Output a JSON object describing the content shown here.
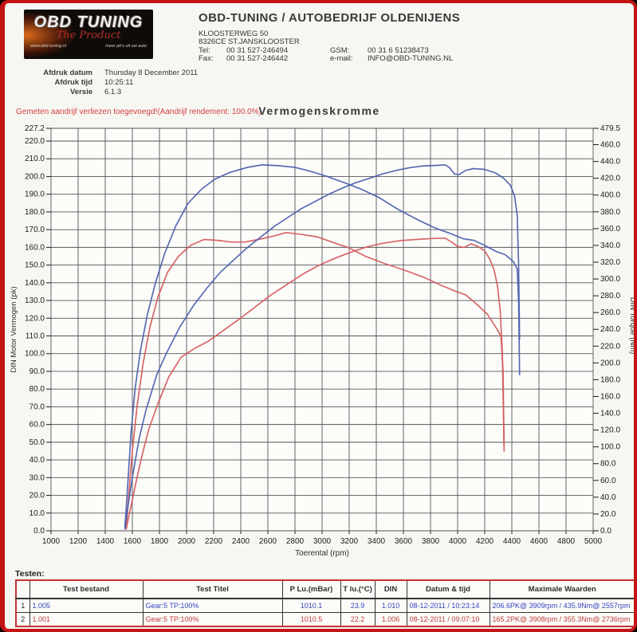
{
  "header": {
    "logo": {
      "line1": "OBD TUNING",
      "line2": "The Product",
      "line3": "www.obd-tuning.nl",
      "line4": "meer pk's uit uw auto"
    },
    "company_title": "OBD-TUNING / AUTOBEDRIJF OLDENIJENS",
    "address_line1": "KLOOSTERWEG 50",
    "address_line2": "8326CE ST.JANSKLOOSTER",
    "contacts": [
      {
        "label": "Tel:",
        "value": "00 31 527-246494",
        "label2": "GSM:",
        "value2": "00 31 6 51238473"
      },
      {
        "label": "Fax:",
        "value": "00 31 527-246442",
        "label2": "e-mail:",
        "value2": "INFO@OBD-TUNING.NL"
      }
    ]
  },
  "print_info": {
    "rows": [
      {
        "label": "Afdruk datum",
        "value": "Thursday 8 December 2011"
      },
      {
        "label": "Afdruk tijd",
        "value": "10:25:11"
      },
      {
        "label": "Versie",
        "value": "6.1.3"
      }
    ]
  },
  "chart": {
    "note": "Gemeten aandrijf verliezen toegevoegd!(Aandrijf rendement: 100.0%)",
    "title": "Vermogenskromme"
  },
  "chart_data": {
    "type": "line",
    "title": "Vermogenskromme",
    "xlabel": "Toerental (rpm)",
    "ylabel_left": "DIN Motor Vermogen (pk)",
    "ylabel_right": "DIN Torque (Nm)",
    "x_range": [
      1000,
      5000
    ],
    "x_tick_step": 200,
    "y_left_range": [
      0,
      227.2
    ],
    "y_left_tick_step": 10,
    "y_left_top_label": 227.2,
    "y_right_range": [
      0,
      479.5
    ],
    "y_right_tick_step": 20,
    "y_right_top_label": 479.5,
    "grid": true,
    "legend": "none",
    "colors": {
      "run1": "#4b5fae",
      "run2": "#d4595c"
    },
    "series": [
      {
        "name": "torque-run1",
        "axis": "right",
        "unit": "Nm",
        "color": "#4b5fae",
        "points": [
          [
            1545,
            4
          ],
          [
            1565,
            53
          ],
          [
            1590,
            116
          ],
          [
            1620,
            169
          ],
          [
            1660,
            215
          ],
          [
            1710,
            257
          ],
          [
            1770,
            295
          ],
          [
            1840,
            331
          ],
          [
            1920,
            363
          ],
          [
            2010,
            390
          ],
          [
            2110,
            407
          ],
          [
            2210,
            419
          ],
          [
            2320,
            427
          ],
          [
            2450,
            433
          ],
          [
            2557,
            435.9
          ],
          [
            2680,
            435
          ],
          [
            2800,
            433
          ],
          [
            2920,
            428
          ],
          [
            3040,
            422
          ],
          [
            3160,
            415
          ],
          [
            3290,
            407
          ],
          [
            3420,
            397
          ],
          [
            3560,
            383
          ],
          [
            3700,
            371
          ],
          [
            3830,
            361
          ],
          [
            3950,
            354
          ],
          [
            4040,
            348
          ],
          [
            4120,
            346
          ],
          [
            4200,
            340
          ],
          [
            4280,
            333
          ],
          [
            4350,
            329
          ],
          [
            4410,
            321
          ],
          [
            4440,
            312
          ],
          [
            4450,
            274
          ],
          [
            4455,
            211
          ],
          [
            4457,
            186
          ]
        ]
      },
      {
        "name": "torque-run2",
        "axis": "right",
        "unit": "Nm",
        "color": "#d4595c",
        "points": [
          [
            1555,
            4
          ],
          [
            1575,
            46
          ],
          [
            1600,
            95
          ],
          [
            1635,
            148
          ],
          [
            1680,
            200
          ],
          [
            1730,
            243
          ],
          [
            1790,
            279
          ],
          [
            1860,
            308
          ],
          [
            1940,
            327
          ],
          [
            2030,
            340
          ],
          [
            2130,
            347
          ],
          [
            2230,
            346
          ],
          [
            2330,
            344
          ],
          [
            2430,
            344
          ],
          [
            2530,
            347
          ],
          [
            2640,
            351
          ],
          [
            2736,
            355.3
          ],
          [
            2850,
            353
          ],
          [
            2970,
            350
          ],
          [
            3090,
            343
          ],
          [
            3200,
            337
          ],
          [
            3320,
            327
          ],
          [
            3450,
            319
          ],
          [
            3600,
            311
          ],
          [
            3750,
            302
          ],
          [
            3870,
            293
          ],
          [
            3990,
            285
          ],
          [
            4060,
            281
          ],
          [
            4140,
            270
          ],
          [
            4220,
            258
          ],
          [
            4280,
            243
          ],
          [
            4320,
            232
          ],
          [
            4335,
            190
          ],
          [
            4343,
            95
          ]
        ]
      },
      {
        "name": "power-run1",
        "axis": "left",
        "unit": "pk",
        "color": "#4b5fae",
        "points": [
          [
            1545,
            1
          ],
          [
            1570,
            15
          ],
          [
            1600,
            30
          ],
          [
            1650,
            52
          ],
          [
            1700,
            68
          ],
          [
            1780,
            88
          ],
          [
            1850,
            100
          ],
          [
            1950,
            115
          ],
          [
            2050,
            127
          ],
          [
            2150,
            137
          ],
          [
            2250,
            146
          ],
          [
            2350,
            153
          ],
          [
            2450,
            160
          ],
          [
            2550,
            166
          ],
          [
            2650,
            172
          ],
          [
            2750,
            177
          ],
          [
            2850,
            182
          ],
          [
            2950,
            186
          ],
          [
            3050,
            190
          ],
          [
            3150,
            193.5
          ],
          [
            3250,
            196.5
          ],
          [
            3350,
            199
          ],
          [
            3450,
            201.5
          ],
          [
            3550,
            203.5
          ],
          [
            3650,
            205
          ],
          [
            3750,
            206
          ],
          [
            3850,
            206.3
          ],
          [
            3909,
            206.6
          ],
          [
            3940,
            205
          ],
          [
            3975,
            201.5
          ],
          [
            4010,
            201
          ],
          [
            4060,
            203.5
          ],
          [
            4120,
            204.5
          ],
          [
            4200,
            204
          ],
          [
            4280,
            202
          ],
          [
            4340,
            199
          ],
          [
            4390,
            195
          ],
          [
            4420,
            189
          ],
          [
            4440,
            178
          ],
          [
            4450,
            150
          ],
          [
            4457,
            108
          ]
        ]
      },
      {
        "name": "power-run2",
        "axis": "left",
        "unit": "pk",
        "color": "#d4595c",
        "points": [
          [
            1555,
            1
          ],
          [
            1585,
            12
          ],
          [
            1620,
            25
          ],
          [
            1670,
            42
          ],
          [
            1720,
            57
          ],
          [
            1790,
            72
          ],
          [
            1870,
            87
          ],
          [
            1960,
            98
          ],
          [
            2060,
            103
          ],
          [
            2160,
            107
          ],
          [
            2270,
            113
          ],
          [
            2380,
            119
          ],
          [
            2500,
            126
          ],
          [
            2620,
            133
          ],
          [
            2740,
            139
          ],
          [
            2860,
            145
          ],
          [
            2980,
            150
          ],
          [
            3100,
            154
          ],
          [
            3220,
            157.5
          ],
          [
            3340,
            160.5
          ],
          [
            3460,
            162.5
          ],
          [
            3580,
            163.8
          ],
          [
            3700,
            164.5
          ],
          [
            3810,
            165
          ],
          [
            3908,
            165.2
          ],
          [
            3955,
            163
          ],
          [
            4000,
            160.5
          ],
          [
            4050,
            160
          ],
          [
            4100,
            162
          ],
          [
            4150,
            160.5
          ],
          [
            4200,
            158
          ],
          [
            4240,
            153
          ],
          [
            4270,
            147
          ],
          [
            4295,
            138
          ],
          [
            4315,
            124
          ],
          [
            4330,
            100
          ],
          [
            4343,
            48
          ]
        ]
      }
    ],
    "max_values": {
      "run1": "206.6PK@ 3909rpm / 435.9Nm@ 2557rpm",
      "run2": "165.2PK@ 3908rpm / 355.3Nm@ 2736rpm"
    }
  },
  "table": {
    "section_label": "Testen:",
    "headers": [
      "",
      "Test bestand",
      "Test Titel",
      "P Lu.(mBar)",
      "T lu.(°C)",
      "DIN",
      "Datum & tijd",
      "Maximale Waarden"
    ],
    "rows": [
      {
        "num": "1",
        "test_bestand": "1.005",
        "test_titel": "Gear:5 TP:100%",
        "p_lu": "1010.1",
        "t_lu": "23.9",
        "din": "1.010",
        "datum": "08-12-2011 / 10:23:14",
        "max": "206.6PK@ 3909rpm / 435.9Nm@ 2557rpm",
        "color": "#3546c0"
      },
      {
        "num": "2",
        "test_bestand": "1.001",
        "test_titel": "Gear:5 TP:100%",
        "p_lu": "1010.5",
        "t_lu": "22.2",
        "din": "1.006",
        "datum": "08-12-2011 / 09:07:10",
        "max": "165.2PK@ 3908rpm / 355.3Nm@ 2736rpm",
        "color": "#c03c3c"
      }
    ]
  }
}
